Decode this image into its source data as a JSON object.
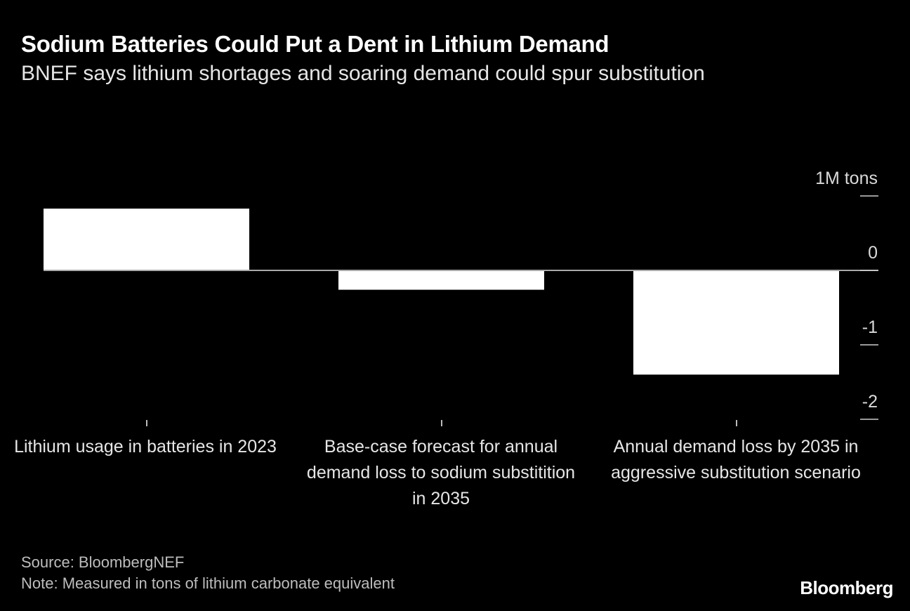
{
  "title": "Sodium Batteries Could Put a Dent in Lithium Demand",
  "subtitle": "BNEF says lithium shortages and soaring demand could spur substitution",
  "source": "Source: BloombergNEF",
  "note": "Note: Measured in tons of lithium carbonate equivalent",
  "logo": "Bloomberg",
  "chart_data": {
    "type": "bar",
    "categories": [
      "Lithium usage in batteries in 2023",
      "Base-case forecast for annual demand loss to sodium substitition in 2035",
      "Annual demand loss by 2035 in aggressive substitution scenario"
    ],
    "values": [
      0.83,
      -0.26,
      -1.4
    ],
    "unit": "1M tons",
    "yticks": [
      {
        "value": 1,
        "label": "1M tons"
      },
      {
        "value": 0,
        "label": "0"
      },
      {
        "value": -1,
        "label": "-1"
      },
      {
        "value": -2,
        "label": "-2"
      }
    ],
    "ylim": [
      -2,
      1
    ],
    "y_axis_position": "right",
    "grid": false,
    "bar_color": "#ffffff",
    "background": "#000000"
  }
}
